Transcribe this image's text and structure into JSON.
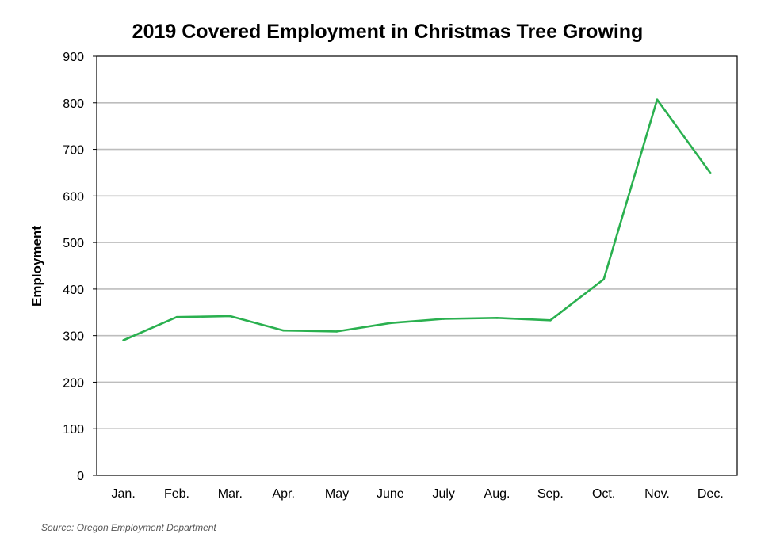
{
  "chart_data": {
    "type": "line",
    "title": "2019 Covered Employment in Christmas Tree Growing",
    "xlabel": "",
    "ylabel": "Employment",
    "categories": [
      "Jan.",
      "Feb.",
      "Mar.",
      "Apr.",
      "May",
      "June",
      "July",
      "Aug.",
      "Sep.",
      "Oct.",
      "Nov.",
      "Dec."
    ],
    "series": [
      {
        "values": [
          290,
          340,
          342,
          311,
          309,
          327,
          336,
          338,
          333,
          421,
          807,
          649
        ],
        "color": "#2ab04f"
      }
    ],
    "ylim": [
      0,
      900
    ],
    "yticks": [
      0,
      100,
      200,
      300,
      400,
      500,
      600,
      700,
      800,
      900
    ],
    "grid": true,
    "legend": "none",
    "source": "Source: Oregon Employment Department"
  }
}
